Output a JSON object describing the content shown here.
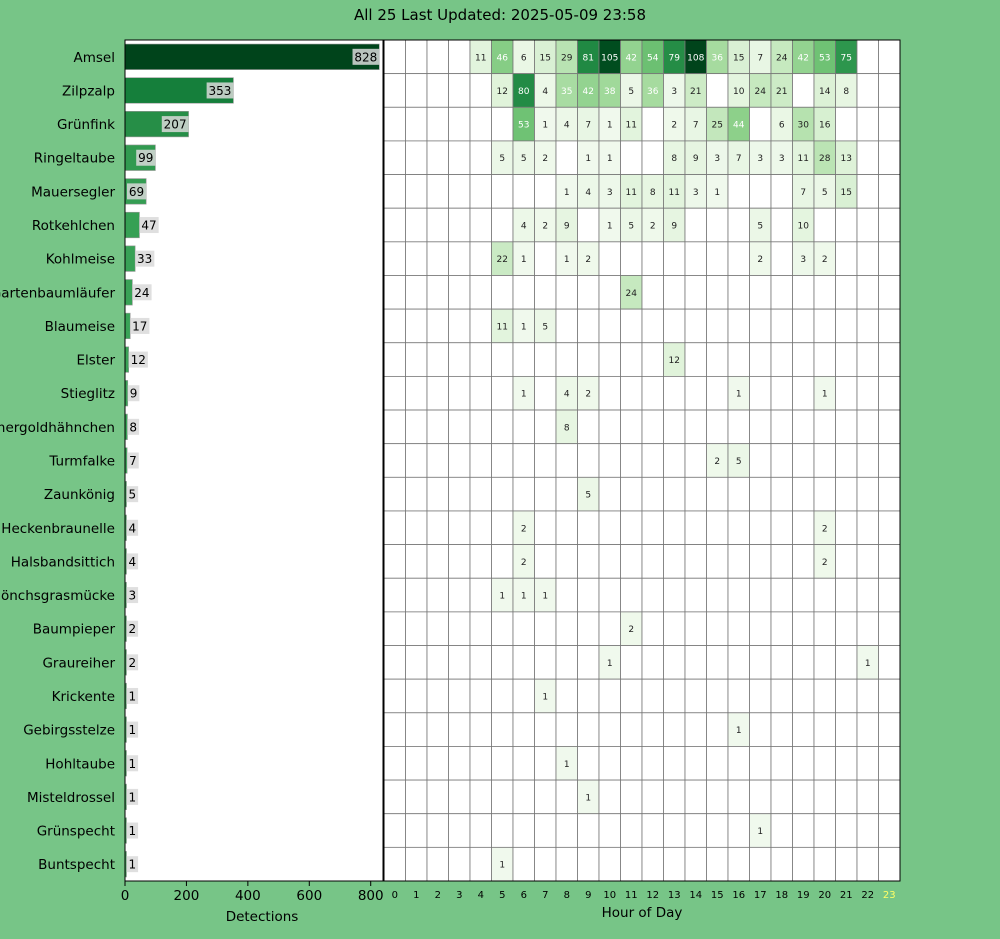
{
  "title": "All 25 Last Updated: 2025-05-09 23:58",
  "colors": {
    "background": "#77c587",
    "bar_dark": "#00441b",
    "highlight_hour": "#ffff66"
  },
  "chart_data": [
    {
      "type": "bar",
      "orientation": "horizontal",
      "xlabel": "Detections",
      "xlim": [
        0,
        840
      ],
      "xticks": [
        0,
        200,
        400,
        600,
        800
      ],
      "categories": [
        "Amsel",
        "Zilpzalp",
        "Grünfink",
        "Ringeltaube",
        "Mauersegler",
        "Rotkehlchen",
        "Kohlmeise",
        "Gartenbaumläufer",
        "Blaumeise",
        "Elster",
        "Stieglitz",
        "Sommergoldhähnchen",
        "Turmfalke",
        "Zaunkönig",
        "Heckenbraunelle",
        "Halsbandsittich",
        "Mönchsgrasmücke",
        "Baumpieper",
        "Graureiher",
        "Krickente",
        "Gebirgsstelze",
        "Hohltaube",
        "Misteldrossel",
        "Grünspecht",
        "Buntspecht"
      ],
      "values": [
        828,
        353,
        207,
        99,
        69,
        47,
        33,
        24,
        17,
        12,
        9,
        8,
        7,
        5,
        4,
        4,
        3,
        2,
        2,
        1,
        1,
        1,
        1,
        1,
        1
      ]
    },
    {
      "type": "heatmap",
      "xlabel": "Hour of Day",
      "hours": [
        0,
        1,
        2,
        3,
        4,
        5,
        6,
        7,
        8,
        9,
        10,
        11,
        12,
        13,
        14,
        15,
        16,
        17,
        18,
        19,
        20,
        21,
        22,
        23
      ],
      "highlight_hour": 23,
      "max_value": 108,
      "rows": [
        [
          0,
          0,
          0,
          0,
          11,
          46,
          6,
          15,
          29,
          81,
          105,
          42,
          54,
          79,
          108,
          36,
          15,
          7,
          24,
          42,
          53,
          75,
          0,
          0
        ],
        [
          0,
          0,
          0,
          0,
          0,
          12,
          80,
          4,
          35,
          42,
          38,
          5,
          36,
          3,
          21,
          0,
          10,
          24,
          21,
          0,
          14,
          8,
          0,
          0
        ],
        [
          0,
          0,
          0,
          0,
          0,
          0,
          53,
          1,
          4,
          7,
          1,
          11,
          0,
          2,
          7,
          25,
          44,
          0,
          6,
          30,
          16,
          0,
          0,
          0
        ],
        [
          0,
          0,
          0,
          0,
          0,
          5,
          5,
          2,
          0,
          1,
          1,
          0,
          0,
          8,
          9,
          3,
          7,
          3,
          3,
          11,
          28,
          13,
          0,
          0
        ],
        [
          0,
          0,
          0,
          0,
          0,
          0,
          0,
          0,
          1,
          4,
          3,
          11,
          8,
          11,
          3,
          1,
          0,
          0,
          0,
          7,
          5,
          15,
          0,
          0
        ],
        [
          0,
          0,
          0,
          0,
          0,
          0,
          4,
          2,
          9,
          0,
          1,
          5,
          2,
          9,
          0,
          0,
          0,
          5,
          0,
          10,
          0,
          0,
          0,
          0
        ],
        [
          0,
          0,
          0,
          0,
          0,
          22,
          1,
          0,
          1,
          2,
          0,
          0,
          0,
          0,
          0,
          0,
          0,
          2,
          0,
          3,
          2,
          0,
          0,
          0
        ],
        [
          0,
          0,
          0,
          0,
          0,
          0,
          0,
          0,
          0,
          0,
          0,
          24,
          0,
          0,
          0,
          0,
          0,
          0,
          0,
          0,
          0,
          0,
          0,
          0
        ],
        [
          0,
          0,
          0,
          0,
          0,
          11,
          1,
          5,
          0,
          0,
          0,
          0,
          0,
          0,
          0,
          0,
          0,
          0,
          0,
          0,
          0,
          0,
          0,
          0
        ],
        [
          0,
          0,
          0,
          0,
          0,
          0,
          0,
          0,
          0,
          0,
          0,
          0,
          0,
          12,
          0,
          0,
          0,
          0,
          0,
          0,
          0,
          0,
          0,
          0
        ],
        [
          0,
          0,
          0,
          0,
          0,
          0,
          1,
          0,
          4,
          2,
          0,
          0,
          0,
          0,
          0,
          0,
          1,
          0,
          0,
          0,
          1,
          0,
          0,
          0
        ],
        [
          0,
          0,
          0,
          0,
          0,
          0,
          0,
          0,
          8,
          0,
          0,
          0,
          0,
          0,
          0,
          0,
          0,
          0,
          0,
          0,
          0,
          0,
          0,
          0
        ],
        [
          0,
          0,
          0,
          0,
          0,
          0,
          0,
          0,
          0,
          0,
          0,
          0,
          0,
          0,
          0,
          2,
          5,
          0,
          0,
          0,
          0,
          0,
          0,
          0
        ],
        [
          0,
          0,
          0,
          0,
          0,
          0,
          0,
          0,
          0,
          5,
          0,
          0,
          0,
          0,
          0,
          0,
          0,
          0,
          0,
          0,
          0,
          0,
          0,
          0
        ],
        [
          0,
          0,
          0,
          0,
          0,
          0,
          2,
          0,
          0,
          0,
          0,
          0,
          0,
          0,
          0,
          0,
          0,
          0,
          0,
          0,
          2,
          0,
          0,
          0
        ],
        [
          0,
          0,
          0,
          0,
          0,
          0,
          2,
          0,
          0,
          0,
          0,
          0,
          0,
          0,
          0,
          0,
          0,
          0,
          0,
          0,
          2,
          0,
          0,
          0
        ],
        [
          0,
          0,
          0,
          0,
          0,
          1,
          1,
          1,
          0,
          0,
          0,
          0,
          0,
          0,
          0,
          0,
          0,
          0,
          0,
          0,
          0,
          0,
          0,
          0
        ],
        [
          0,
          0,
          0,
          0,
          0,
          0,
          0,
          0,
          0,
          0,
          0,
          2,
          0,
          0,
          0,
          0,
          0,
          0,
          0,
          0,
          0,
          0,
          0,
          0
        ],
        [
          0,
          0,
          0,
          0,
          0,
          0,
          0,
          0,
          0,
          0,
          1,
          0,
          0,
          0,
          0,
          0,
          0,
          0,
          0,
          0,
          0,
          0,
          1,
          0
        ],
        [
          0,
          0,
          0,
          0,
          0,
          0,
          0,
          1,
          0,
          0,
          0,
          0,
          0,
          0,
          0,
          0,
          0,
          0,
          0,
          0,
          0,
          0,
          0,
          0
        ],
        [
          0,
          0,
          0,
          0,
          0,
          0,
          0,
          0,
          0,
          0,
          0,
          0,
          0,
          0,
          0,
          0,
          1,
          0,
          0,
          0,
          0,
          0,
          0,
          0
        ],
        [
          0,
          0,
          0,
          0,
          0,
          0,
          0,
          0,
          1,
          0,
          0,
          0,
          0,
          0,
          0,
          0,
          0,
          0,
          0,
          0,
          0,
          0,
          0,
          0
        ],
        [
          0,
          0,
          0,
          0,
          0,
          0,
          0,
          0,
          0,
          1,
          0,
          0,
          0,
          0,
          0,
          0,
          0,
          0,
          0,
          0,
          0,
          0,
          0,
          0
        ],
        [
          0,
          0,
          0,
          0,
          0,
          0,
          0,
          0,
          0,
          0,
          0,
          0,
          0,
          0,
          0,
          0,
          0,
          1,
          0,
          0,
          0,
          0,
          0,
          0
        ],
        [
          0,
          0,
          0,
          0,
          0,
          1,
          0,
          0,
          0,
          0,
          0,
          0,
          0,
          0,
          0,
          0,
          0,
          0,
          0,
          0,
          0,
          0,
          0,
          0
        ]
      ]
    }
  ]
}
